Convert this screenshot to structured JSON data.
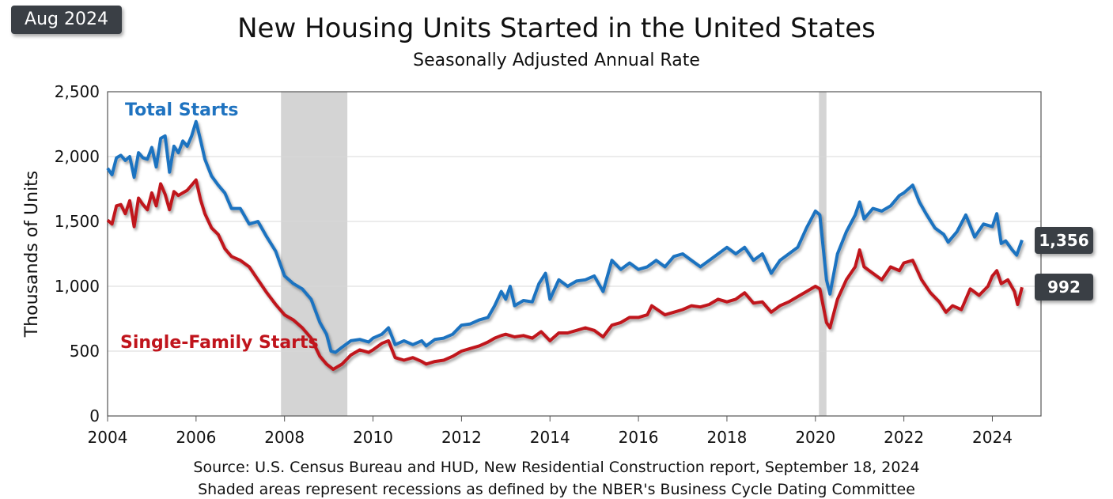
{
  "badge": "Aug 2024",
  "footnote_source": "Source:  U.S. Census Bureau and HUD, New Residential Construction report, September 18, 2024",
  "footnote_shading": "Shaded areas represent recessions as defined by the NBER's Business Cycle Dating Committee",
  "chart_data": {
    "type": "line",
    "title": "New Housing Units Started in the United States",
    "subtitle": "Seasonally Adjusted Annual Rate",
    "ylabel": "Thousands of Units",
    "xlabel": "",
    "xlim": [
      2004,
      2025.1
    ],
    "ylim": [
      0,
      2500
    ],
    "x_ticks": [
      2004,
      2006,
      2008,
      2010,
      2012,
      2014,
      2016,
      2018,
      2020,
      2022,
      2024
    ],
    "y_ticks": [
      0,
      500,
      1000,
      1500,
      2000,
      2500
    ],
    "y_tick_labels": [
      "0",
      "500",
      "1,000",
      "1,500",
      "2,000",
      "2,500"
    ],
    "grid": true,
    "recessions": [
      [
        2007.92,
        2009.42
      ],
      [
        2020.08,
        2020.25
      ]
    ],
    "colors": {
      "total": "#1f73c0",
      "single": "#c0141c",
      "recession": "#d4d4d4"
    },
    "series": [
      {
        "name": "Total Starts",
        "color": "#1f73c0",
        "end_label": "1,356",
        "points": [
          [
            2004.0,
            1910
          ],
          [
            2004.1,
            1860
          ],
          [
            2004.2,
            1990
          ],
          [
            2004.3,
            2010
          ],
          [
            2004.4,
            1970
          ],
          [
            2004.5,
            2000
          ],
          [
            2004.6,
            1840
          ],
          [
            2004.7,
            2030
          ],
          [
            2004.8,
            1990
          ],
          [
            2004.9,
            1980
          ],
          [
            2005.0,
            2070
          ],
          [
            2005.1,
            1920
          ],
          [
            2005.2,
            2140
          ],
          [
            2005.3,
            2160
          ],
          [
            2005.4,
            1880
          ],
          [
            2005.5,
            2080
          ],
          [
            2005.6,
            2030
          ],
          [
            2005.7,
            2120
          ],
          [
            2005.8,
            2080
          ],
          [
            2005.9,
            2160
          ],
          [
            2006.0,
            2270
          ],
          [
            2006.1,
            2130
          ],
          [
            2006.2,
            1980
          ],
          [
            2006.35,
            1850
          ],
          [
            2006.5,
            1780
          ],
          [
            2006.65,
            1720
          ],
          [
            2006.8,
            1600
          ],
          [
            2007.0,
            1600
          ],
          [
            2007.2,
            1480
          ],
          [
            2007.4,
            1500
          ],
          [
            2007.6,
            1380
          ],
          [
            2007.8,
            1270
          ],
          [
            2008.0,
            1080
          ],
          [
            2008.2,
            1020
          ],
          [
            2008.4,
            980
          ],
          [
            2008.6,
            900
          ],
          [
            2008.8,
            720
          ],
          [
            2008.95,
            630
          ],
          [
            2009.05,
            500
          ],
          [
            2009.15,
            490
          ],
          [
            2009.3,
            530
          ],
          [
            2009.5,
            580
          ],
          [
            2009.7,
            590
          ],
          [
            2009.9,
            570
          ],
          [
            2010.0,
            600
          ],
          [
            2010.2,
            630
          ],
          [
            2010.35,
            680
          ],
          [
            2010.5,
            550
          ],
          [
            2010.7,
            580
          ],
          [
            2010.9,
            550
          ],
          [
            2011.1,
            580
          ],
          [
            2011.2,
            540
          ],
          [
            2011.4,
            590
          ],
          [
            2011.6,
            600
          ],
          [
            2011.8,
            630
          ],
          [
            2012.0,
            700
          ],
          [
            2012.2,
            710
          ],
          [
            2012.4,
            740
          ],
          [
            2012.6,
            760
          ],
          [
            2012.75,
            850
          ],
          [
            2012.9,
            960
          ],
          [
            2013.0,
            900
          ],
          [
            2013.1,
            1000
          ],
          [
            2013.2,
            850
          ],
          [
            2013.4,
            890
          ],
          [
            2013.6,
            880
          ],
          [
            2013.75,
            1020
          ],
          [
            2013.9,
            1100
          ],
          [
            2014.0,
            900
          ],
          [
            2014.2,
            1050
          ],
          [
            2014.4,
            1000
          ],
          [
            2014.6,
            1040
          ],
          [
            2014.8,
            1050
          ],
          [
            2015.0,
            1080
          ],
          [
            2015.2,
            960
          ],
          [
            2015.4,
            1200
          ],
          [
            2015.6,
            1130
          ],
          [
            2015.8,
            1180
          ],
          [
            2016.0,
            1130
          ],
          [
            2016.2,
            1150
          ],
          [
            2016.4,
            1200
          ],
          [
            2016.6,
            1150
          ],
          [
            2016.8,
            1230
          ],
          [
            2017.0,
            1250
          ],
          [
            2017.2,
            1200
          ],
          [
            2017.4,
            1150
          ],
          [
            2017.6,
            1200
          ],
          [
            2017.8,
            1250
          ],
          [
            2018.0,
            1300
          ],
          [
            2018.2,
            1250
          ],
          [
            2018.4,
            1300
          ],
          [
            2018.6,
            1200
          ],
          [
            2018.8,
            1250
          ],
          [
            2019.0,
            1100
          ],
          [
            2019.2,
            1200
          ],
          [
            2019.4,
            1250
          ],
          [
            2019.6,
            1300
          ],
          [
            2019.8,
            1450
          ],
          [
            2020.0,
            1580
          ],
          [
            2020.1,
            1550
          ],
          [
            2020.25,
            1050
          ],
          [
            2020.33,
            940
          ],
          [
            2020.5,
            1250
          ],
          [
            2020.7,
            1420
          ],
          [
            2020.9,
            1550
          ],
          [
            2021.0,
            1650
          ],
          [
            2021.1,
            1520
          ],
          [
            2021.3,
            1600
          ],
          [
            2021.5,
            1580
          ],
          [
            2021.7,
            1620
          ],
          [
            2021.9,
            1700
          ],
          [
            2022.0,
            1720
          ],
          [
            2022.2,
            1780
          ],
          [
            2022.35,
            1650
          ],
          [
            2022.5,
            1560
          ],
          [
            2022.7,
            1450
          ],
          [
            2022.9,
            1400
          ],
          [
            2023.0,
            1340
          ],
          [
            2023.2,
            1420
          ],
          [
            2023.4,
            1550
          ],
          [
            2023.6,
            1380
          ],
          [
            2023.8,
            1480
          ],
          [
            2024.0,
            1460
          ],
          [
            2024.1,
            1560
          ],
          [
            2024.2,
            1330
          ],
          [
            2024.3,
            1350
          ],
          [
            2024.45,
            1280
          ],
          [
            2024.55,
            1240
          ],
          [
            2024.67,
            1356
          ]
        ]
      },
      {
        "name": "Single-Family Starts",
        "color": "#c0141c",
        "end_label": "992",
        "points": [
          [
            2004.0,
            1510
          ],
          [
            2004.1,
            1480
          ],
          [
            2004.2,
            1620
          ],
          [
            2004.3,
            1630
          ],
          [
            2004.4,
            1560
          ],
          [
            2004.5,
            1660
          ],
          [
            2004.6,
            1460
          ],
          [
            2004.7,
            1680
          ],
          [
            2004.8,
            1630
          ],
          [
            2004.9,
            1590
          ],
          [
            2005.0,
            1720
          ],
          [
            2005.1,
            1620
          ],
          [
            2005.2,
            1790
          ],
          [
            2005.3,
            1710
          ],
          [
            2005.4,
            1590
          ],
          [
            2005.5,
            1730
          ],
          [
            2005.6,
            1700
          ],
          [
            2005.7,
            1720
          ],
          [
            2005.8,
            1740
          ],
          [
            2005.9,
            1780
          ],
          [
            2006.0,
            1820
          ],
          [
            2006.1,
            1670
          ],
          [
            2006.2,
            1560
          ],
          [
            2006.35,
            1450
          ],
          [
            2006.5,
            1400
          ],
          [
            2006.65,
            1290
          ],
          [
            2006.8,
            1230
          ],
          [
            2007.0,
            1200
          ],
          [
            2007.2,
            1150
          ],
          [
            2007.4,
            1050
          ],
          [
            2007.6,
            950
          ],
          [
            2007.8,
            860
          ],
          [
            2008.0,
            780
          ],
          [
            2008.2,
            740
          ],
          [
            2008.4,
            680
          ],
          [
            2008.6,
            600
          ],
          [
            2008.8,
            460
          ],
          [
            2008.95,
            400
          ],
          [
            2009.1,
            360
          ],
          [
            2009.3,
            400
          ],
          [
            2009.5,
            470
          ],
          [
            2009.7,
            510
          ],
          [
            2009.9,
            490
          ],
          [
            2010.0,
            510
          ],
          [
            2010.2,
            560
          ],
          [
            2010.35,
            580
          ],
          [
            2010.5,
            450
          ],
          [
            2010.7,
            430
          ],
          [
            2010.9,
            450
          ],
          [
            2011.1,
            420
          ],
          [
            2011.2,
            400
          ],
          [
            2011.4,
            420
          ],
          [
            2011.6,
            430
          ],
          [
            2011.8,
            460
          ],
          [
            2012.0,
            500
          ],
          [
            2012.2,
            520
          ],
          [
            2012.4,
            540
          ],
          [
            2012.6,
            570
          ],
          [
            2012.75,
            600
          ],
          [
            2012.9,
            620
          ],
          [
            2013.0,
            630
          ],
          [
            2013.2,
            610
          ],
          [
            2013.4,
            620
          ],
          [
            2013.6,
            600
          ],
          [
            2013.8,
            650
          ],
          [
            2014.0,
            580
          ],
          [
            2014.2,
            640
          ],
          [
            2014.4,
            640
          ],
          [
            2014.6,
            660
          ],
          [
            2014.8,
            680
          ],
          [
            2015.0,
            660
          ],
          [
            2015.2,
            610
          ],
          [
            2015.4,
            700
          ],
          [
            2015.6,
            720
          ],
          [
            2015.8,
            760
          ],
          [
            2016.0,
            760
          ],
          [
            2016.2,
            780
          ],
          [
            2016.3,
            850
          ],
          [
            2016.6,
            780
          ],
          [
            2016.8,
            800
          ],
          [
            2017.0,
            820
          ],
          [
            2017.2,
            850
          ],
          [
            2017.4,
            840
          ],
          [
            2017.6,
            860
          ],
          [
            2017.8,
            900
          ],
          [
            2018.0,
            880
          ],
          [
            2018.2,
            900
          ],
          [
            2018.4,
            950
          ],
          [
            2018.6,
            870
          ],
          [
            2018.8,
            880
          ],
          [
            2019.0,
            800
          ],
          [
            2019.2,
            850
          ],
          [
            2019.4,
            880
          ],
          [
            2019.6,
            920
          ],
          [
            2019.8,
            960
          ],
          [
            2020.0,
            1000
          ],
          [
            2020.1,
            980
          ],
          [
            2020.25,
            720
          ],
          [
            2020.33,
            680
          ],
          [
            2020.5,
            900
          ],
          [
            2020.7,
            1050
          ],
          [
            2020.9,
            1150
          ],
          [
            2021.0,
            1280
          ],
          [
            2021.1,
            1150
          ],
          [
            2021.3,
            1100
          ],
          [
            2021.5,
            1050
          ],
          [
            2021.7,
            1150
          ],
          [
            2021.9,
            1120
          ],
          [
            2022.0,
            1180
          ],
          [
            2022.2,
            1200
          ],
          [
            2022.4,
            1050
          ],
          [
            2022.6,
            950
          ],
          [
            2022.8,
            880
          ],
          [
            2022.95,
            800
          ],
          [
            2023.1,
            850
          ],
          [
            2023.3,
            820
          ],
          [
            2023.5,
            980
          ],
          [
            2023.7,
            930
          ],
          [
            2023.9,
            1000
          ],
          [
            2024.0,
            1080
          ],
          [
            2024.1,
            1120
          ],
          [
            2024.2,
            1020
          ],
          [
            2024.35,
            1050
          ],
          [
            2024.5,
            960
          ],
          [
            2024.57,
            860
          ],
          [
            2024.67,
            992
          ]
        ]
      }
    ]
  }
}
